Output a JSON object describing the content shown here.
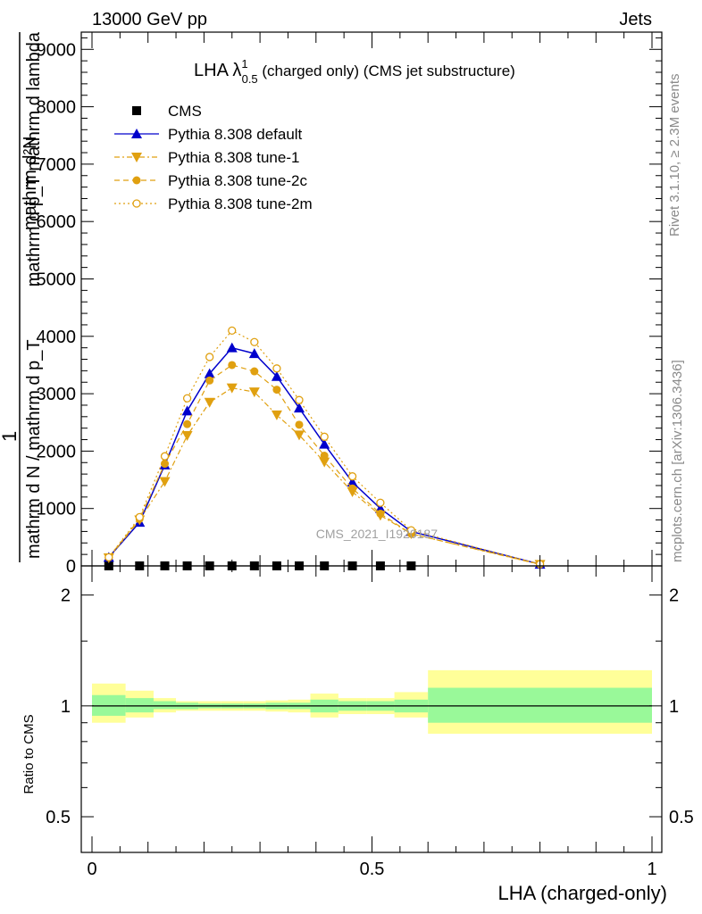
{
  "header": {
    "left": "13000 GeV pp",
    "right": "Jets"
  },
  "side_text": {
    "rivet": "Rivet 3.1.10, ≥ 2.3M events",
    "mcplots": "mcplots.cern.ch [arXiv:1306.3436]"
  },
  "watermark": "CMS_2021_I1920187",
  "colors": {
    "cms": "#000000",
    "default": "#0000cc",
    "tunes": "#e0a010",
    "band_inner": "#99f999",
    "band_outer": "#ffff99"
  },
  "chart_data": [
    {
      "type": "line",
      "title_main": "LHA λ",
      "title_sup": "1",
      "title_sub": "0.5",
      "title_rest": " (charged only) (CMS jet substructure)",
      "ylabel_top": "mathrm d²N",
      "ylabel_top2": "mathrm d p_T mathrm d lambda",
      "ylabel_bot": "1",
      "ylabel_bot2": "mathrm d N / mathrm d p_T",
      "xlim": [
        0,
        1
      ],
      "ylim": [
        0,
        9300
      ],
      "yticks": [
        0,
        1000,
        2000,
        3000,
        4000,
        5000,
        6000,
        7000,
        8000,
        9000
      ],
      "ytick_labels": [
        "0",
        "1000",
        "2000",
        "3000",
        "4000",
        "5000",
        "6000",
        "7000",
        "8000",
        "9000"
      ],
      "x": [
        0.03,
        0.085,
        0.13,
        0.17,
        0.21,
        0.25,
        0.29,
        0.33,
        0.37,
        0.415,
        0.465,
        0.515,
        0.57,
        0.8
      ],
      "cms_x": [
        0.03,
        0.085,
        0.13,
        0.17,
        0.21,
        0.25,
        0.29,
        0.33,
        0.37,
        0.415,
        0.465,
        0.515,
        0.57
      ],
      "cms_y": [
        0,
        0,
        0,
        0,
        0,
        0,
        0,
        0,
        0,
        0,
        0,
        0,
        0
      ],
      "series": [
        {
          "name": "CMS",
          "key": "cms",
          "marker": "square"
        },
        {
          "name": "Pythia 8.308 default",
          "key": "default",
          "marker": "triangle-up",
          "dash": "",
          "values": [
            150,
            760,
            1760,
            2700,
            3350,
            3800,
            3700,
            3300,
            2750,
            2120,
            1460,
            1000,
            600,
            30
          ]
        },
        {
          "name": "Pythia 8.308 tune-1",
          "key": "tune1",
          "marker": "triangle-down",
          "dash": "6,3,2,3",
          "values": [
            140,
            800,
            1470,
            2270,
            2850,
            3100,
            3030,
            2630,
            2280,
            1810,
            1290,
            880,
            560,
            25
          ]
        },
        {
          "name": "Pythia 8.308 tune-2c",
          "key": "tune2c",
          "marker": "circle",
          "dash": "6,4",
          "values": [
            150,
            820,
            1780,
            2470,
            3230,
            3500,
            3390,
            3070,
            2460,
            1920,
            1350,
            910,
            560,
            30
          ]
        },
        {
          "name": "Pythia 8.308 tune-2m",
          "key": "tune2m",
          "marker": "circle-open",
          "dash": "2,3",
          "values": [
            150,
            850,
            1910,
            2920,
            3640,
            4100,
            3900,
            3440,
            2890,
            2250,
            1560,
            1100,
            620,
            30
          ]
        }
      ]
    },
    {
      "type": "area",
      "ylabel": "Ratio to CMS",
      "xlabel": "LHA (charged-only)",
      "xlim": [
        0,
        1
      ],
      "ylim": [
        0.4,
        2.4
      ],
      "log_y": true,
      "yticks": [
        0.5,
        1,
        2
      ],
      "ytick_labels": [
        "0.5",
        "1",
        "2"
      ],
      "xticks": [
        0,
        0.5,
        1
      ],
      "xtick_labels": [
        "0",
        "0.5",
        "1"
      ],
      "bins": [
        [
          0,
          0.06
        ],
        [
          0.06,
          0.11
        ],
        [
          0.11,
          0.15
        ],
        [
          0.15,
          0.19
        ],
        [
          0.19,
          0.23
        ],
        [
          0.23,
          0.27
        ],
        [
          0.27,
          0.31
        ],
        [
          0.31,
          0.35
        ],
        [
          0.35,
          0.39
        ],
        [
          0.39,
          0.44
        ],
        [
          0.44,
          0.49
        ],
        [
          0.49,
          0.54
        ],
        [
          0.54,
          0.6
        ],
        [
          0.6,
          1.0
        ]
      ],
      "inner_lo": [
        0.94,
        0.96,
        0.98,
        0.98,
        0.985,
        0.985,
        0.985,
        0.98,
        0.98,
        0.96,
        0.97,
        0.97,
        0.96,
        0.9
      ],
      "inner_hi": [
        1.07,
        1.05,
        1.03,
        1.02,
        1.015,
        1.015,
        1.015,
        1.02,
        1.02,
        1.04,
        1.03,
        1.03,
        1.04,
        1.12
      ],
      "outer_lo": [
        0.9,
        0.93,
        0.96,
        0.97,
        0.97,
        0.97,
        0.97,
        0.965,
        0.96,
        0.93,
        0.95,
        0.95,
        0.93,
        0.84
      ],
      "outer_hi": [
        1.15,
        1.1,
        1.05,
        1.03,
        1.03,
        1.03,
        1.03,
        1.035,
        1.04,
        1.08,
        1.05,
        1.05,
        1.09,
        1.25
      ]
    }
  ]
}
